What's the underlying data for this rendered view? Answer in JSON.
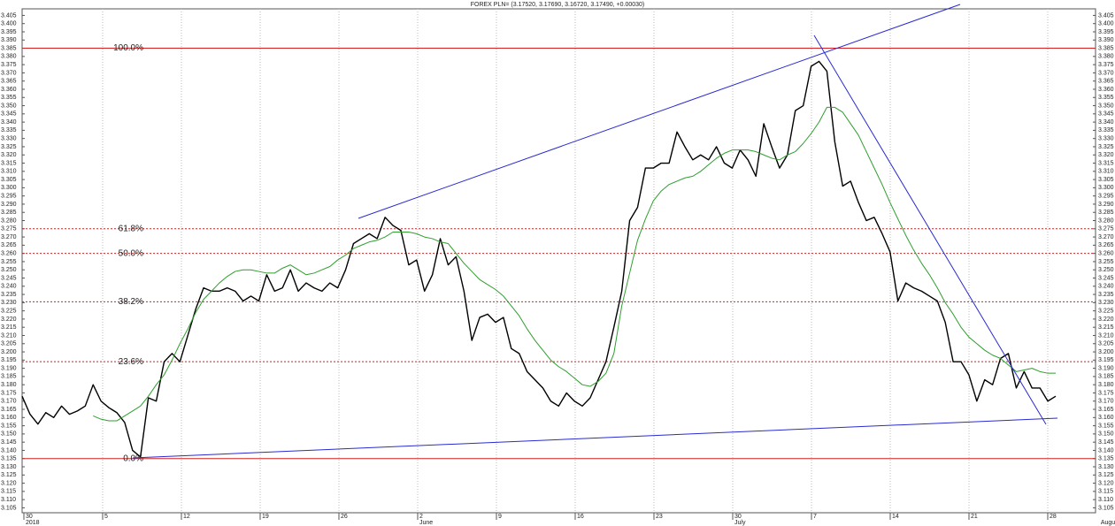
{
  "chart_data": {
    "type": "line",
    "title": "FOREX PLN= (3.17520, 3.17690, 3.16720, 3.17490, +0.00030)",
    "ylim": [
      3.102,
      3.409
    ],
    "yticks": [
      3.105,
      {
        "value": 3.11,
        "label": "3.110"
      },
      3.115,
      {
        "value": 3.12,
        "label": "3.120"
      },
      3.125,
      {
        "value": 3.13,
        "label": "3.130"
      },
      3.135,
      {
        "value": 3.14,
        "label": "3.140"
      },
      3.145,
      {
        "value": 3.15,
        "label": "3.150"
      },
      3.155,
      {
        "value": 3.16,
        "label": "3.160"
      },
      3.165,
      {
        "value": 3.17,
        "label": "3.170"
      },
      3.175,
      {
        "value": 3.18,
        "label": "3.180"
      },
      3.185,
      {
        "value": 3.19,
        "label": "3.190"
      },
      3.195,
      {
        "value": 3.2,
        "label": "3.200"
      },
      3.205,
      {
        "value": 3.21,
        "label": "3.210"
      },
      3.215,
      {
        "value": 3.22,
        "label": "3.220"
      },
      3.225,
      {
        "value": 3.23,
        "label": "3.230"
      },
      3.235,
      {
        "value": 3.24,
        "label": "3.240"
      },
      3.245,
      {
        "value": 3.25,
        "label": "3.250"
      },
      3.255,
      {
        "value": 3.26,
        "label": "3.260"
      },
      3.265,
      {
        "value": 3.27,
        "label": "3.270"
      },
      3.275,
      {
        "value": 3.28,
        "label": "3.280"
      },
      3.285,
      {
        "value": 3.29,
        "label": "3.290"
      },
      3.295,
      {
        "value": 3.3,
        "label": "3.300"
      },
      3.305,
      {
        "value": 3.31,
        "label": "3.310"
      },
      3.315,
      {
        "value": 3.32,
        "label": "3.320"
      },
      3.325,
      {
        "value": 3.33,
        "label": "3.330"
      },
      3.335,
      {
        "value": 3.34,
        "label": "3.340"
      },
      3.345,
      {
        "value": 3.35,
        "label": "3.350"
      },
      3.355,
      {
        "value": 3.36,
        "label": "3.360"
      },
      3.365,
      {
        "value": 3.37,
        "label": "3.370"
      },
      3.375,
      {
        "value": 3.38,
        "label": "3.380"
      },
      3.385,
      {
        "value": 3.39,
        "label": "3.390"
      },
      3.395,
      {
        "value": 3.4,
        "label": "3.400"
      },
      3.405
    ],
    "xticks": [
      "30",
      "5",
      "12",
      "19",
      "26",
      "2",
      "9",
      "16",
      "23",
      "30",
      "7",
      "14",
      "21",
      "28"
    ],
    "month_labels": [
      "2018",
      "June",
      "July",
      "August"
    ],
    "levels": [
      {
        "label": "100.0%",
        "value": 3.385
      },
      {
        "label": "61.8%",
        "value": 3.275
      },
      {
        "label": "50.0%",
        "value": 3.26
      },
      {
        "label": "38.2%",
        "value": 3.2305
      },
      {
        "label": "23.6%",
        "value": 3.194
      },
      {
        "label": "0.0%",
        "value": 3.135
      }
    ],
    "level_color": "#d42020",
    "grid": true,
    "series": [
      {
        "color": "#000000",
        "values": [
          3.173,
          3.162,
          3.156,
          3.163,
          3.16,
          3.167,
          3.162,
          3.164,
          3.167,
          3.18,
          3.17,
          3.166,
          3.163,
          3.157,
          3.14,
          3.136,
          3.172,
          3.17,
          3.194,
          3.199,
          3.194,
          3.21,
          3.226,
          3.239,
          3.237,
          3.237,
          3.239,
          3.237,
          3.231,
          3.234,
          3.231,
          3.247,
          3.237,
          3.239,
          3.25,
          3.237,
          3.242,
          3.239,
          3.237,
          3.242,
          3.239,
          3.25,
          3.266,
          3.269,
          3.272,
          3.269,
          3.282,
          3.277,
          3.274,
          3.253,
          3.256,
          3.237,
          3.247,
          3.269,
          3.253,
          3.258,
          3.237,
          3.207,
          3.221,
          3.223,
          3.218,
          3.221,
          3.202,
          3.199,
          3.188,
          3.183,
          3.178,
          3.17,
          3.167,
          3.175,
          3.17,
          3.167,
          3.172,
          3.183,
          3.194,
          3.215,
          3.237,
          3.28,
          3.288,
          3.312,
          3.312,
          3.315,
          3.315,
          3.334,
          3.325,
          3.317,
          3.32,
          3.317,
          3.325,
          3.315,
          3.312,
          3.323,
          3.317,
          3.307,
          3.339,
          3.325,
          3.312,
          3.32,
          3.347,
          3.35,
          3.374,
          3.377,
          3.371,
          3.328,
          3.301,
          3.304,
          3.291,
          3.28,
          3.282,
          3.272,
          3.261,
          3.231,
          3.242,
          3.239,
          3.237,
          3.234,
          3.231,
          3.218,
          3.194,
          3.194,
          3.186,
          3.17,
          3.183,
          3.18,
          3.196,
          3.199,
          3.178,
          3.188,
          3.178,
          3.178,
          3.17,
          3.173
        ]
      },
      {
        "color": "#2e9e2e",
        "values": [
          null,
          null,
          null,
          null,
          null,
          null,
          null,
          null,
          null,
          3.161,
          3.159,
          3.158,
          3.158,
          3.161,
          3.164,
          3.167,
          3.173,
          3.18,
          3.186,
          3.195,
          3.205,
          3.214,
          3.224,
          3.232,
          3.237,
          3.242,
          3.246,
          3.249,
          3.25,
          3.25,
          3.249,
          3.248,
          3.248,
          3.251,
          3.253,
          3.25,
          3.247,
          3.248,
          3.25,
          3.252,
          3.256,
          3.259,
          3.263,
          3.265,
          3.267,
          3.268,
          3.27,
          3.273,
          3.273,
          3.273,
          3.272,
          3.27,
          3.269,
          3.267,
          3.266,
          3.26,
          3.254,
          3.249,
          3.244,
          3.241,
          3.238,
          3.234,
          3.228,
          3.222,
          3.214,
          3.207,
          3.201,
          3.195,
          3.191,
          3.188,
          3.184,
          3.18,
          3.179,
          3.182,
          3.187,
          3.199,
          3.228,
          3.248,
          3.268,
          3.281,
          3.292,
          3.298,
          3.302,
          3.304,
          3.306,
          3.307,
          3.31,
          3.314,
          3.318,
          3.321,
          3.323,
          3.323,
          3.323,
          3.322,
          3.32,
          3.318,
          3.317,
          3.32,
          3.322,
          3.327,
          3.333,
          3.34,
          3.349,
          3.349,
          3.346,
          3.339,
          3.332,
          3.322,
          3.312,
          3.302,
          3.291,
          3.281,
          3.271,
          3.262,
          3.254,
          3.247,
          3.239,
          3.23,
          3.223,
          3.215,
          3.209,
          3.205,
          3.201,
          3.198,
          3.196,
          3.192,
          3.188,
          3.189,
          3.19,
          3.188,
          3.187,
          3.187
        ]
      }
    ]
  }
}
